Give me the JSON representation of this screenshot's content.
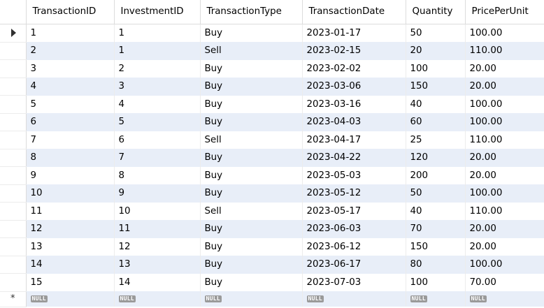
{
  "grid": {
    "columns": [
      "TransactionID",
      "InvestmentID",
      "TransactionType",
      "TransactionDate",
      "Quantity",
      "PricePerUnit"
    ],
    "rows": [
      [
        "1",
        "1",
        "Buy",
        "2023-01-17",
        "50",
        "100.00"
      ],
      [
        "2",
        "1",
        "Sell",
        "2023-02-15",
        "20",
        "110.00"
      ],
      [
        "3",
        "2",
        "Buy",
        "2023-02-02",
        "100",
        "20.00"
      ],
      [
        "4",
        "3",
        "Buy",
        "2023-03-06",
        "150",
        "20.00"
      ],
      [
        "5",
        "4",
        "Buy",
        "2023-03-16",
        "40",
        "100.00"
      ],
      [
        "6",
        "5",
        "Buy",
        "2023-04-03",
        "60",
        "100.00"
      ],
      [
        "7",
        "6",
        "Sell",
        "2023-04-17",
        "25",
        "110.00"
      ],
      [
        "8",
        "7",
        "Buy",
        "2023-04-22",
        "120",
        "20.00"
      ],
      [
        "9",
        "8",
        "Buy",
        "2023-05-03",
        "200",
        "20.00"
      ],
      [
        "10",
        "9",
        "Buy",
        "2023-05-12",
        "50",
        "100.00"
      ],
      [
        "11",
        "10",
        "Sell",
        "2023-05-17",
        "40",
        "110.00"
      ],
      [
        "12",
        "11",
        "Buy",
        "2023-06-03",
        "70",
        "20.00"
      ],
      [
        "13",
        "12",
        "Buy",
        "2023-06-12",
        "150",
        "20.00"
      ],
      [
        "14",
        "13",
        "Buy",
        "2023-06-17",
        "80",
        "100.00"
      ],
      [
        "15",
        "14",
        "Buy",
        "2023-07-03",
        "100",
        "70.00"
      ]
    ],
    "new_row": [
      "NULL",
      "NULL",
      "NULL",
      "NULL",
      "NULL",
      "NULL"
    ],
    "current_row_indicator": "arrow-right-icon",
    "new_row_indicator": "*",
    "colors": {
      "alt_row": "#e8eef8",
      "null_badge": "#9a9a9a"
    }
  }
}
